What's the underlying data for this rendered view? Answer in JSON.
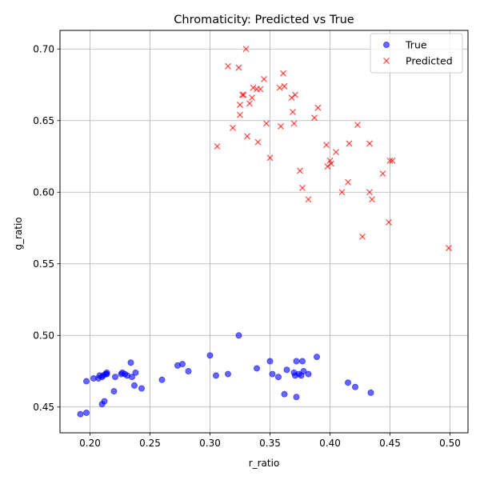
{
  "chart_data": {
    "type": "scatter",
    "title": "Chromaticity: Predicted vs True",
    "xlabel": "r_ratio",
    "ylabel": "g_ratio",
    "xlim": [
      0.175,
      0.515
    ],
    "ylim": [
      0.432,
      0.713
    ],
    "xticks": [
      0.2,
      0.25,
      0.3,
      0.35,
      0.4,
      0.45,
      0.5
    ],
    "xtick_labels": [
      "0.20",
      "0.25",
      "0.30",
      "0.35",
      "0.40",
      "0.45",
      "0.50"
    ],
    "yticks": [
      0.45,
      0.5,
      0.55,
      0.6,
      0.65,
      0.7
    ],
    "ytick_labels": [
      "0.45",
      "0.50",
      "0.55",
      "0.60",
      "0.65",
      "0.70"
    ],
    "grid": true,
    "legend": "top-right",
    "series": [
      {
        "name": "True",
        "marker": "circle",
        "color": "#0000ff",
        "points": [
          [
            0.192,
            0.445
          ],
          [
            0.197,
            0.446
          ],
          [
            0.197,
            0.468
          ],
          [
            0.203,
            0.47
          ],
          [
            0.207,
            0.47
          ],
          [
            0.208,
            0.472
          ],
          [
            0.21,
            0.452
          ],
          [
            0.21,
            0.471
          ],
          [
            0.211,
            0.472
          ],
          [
            0.212,
            0.454
          ],
          [
            0.213,
            0.473
          ],
          [
            0.214,
            0.474
          ],
          [
            0.214,
            0.473
          ],
          [
            0.22,
            0.461
          ],
          [
            0.221,
            0.471
          ],
          [
            0.226,
            0.473
          ],
          [
            0.227,
            0.474
          ],
          [
            0.229,
            0.473
          ],
          [
            0.231,
            0.472
          ],
          [
            0.234,
            0.481
          ],
          [
            0.235,
            0.471
          ],
          [
            0.237,
            0.465
          ],
          [
            0.238,
            0.474
          ],
          [
            0.243,
            0.463
          ],
          [
            0.26,
            0.469
          ],
          [
            0.273,
            0.479
          ],
          [
            0.277,
            0.48
          ],
          [
            0.282,
            0.475
          ],
          [
            0.3,
            0.486
          ],
          [
            0.305,
            0.472
          ],
          [
            0.315,
            0.473
          ],
          [
            0.324,
            0.5
          ],
          [
            0.339,
            0.477
          ],
          [
            0.35,
            0.482
          ],
          [
            0.352,
            0.473
          ],
          [
            0.357,
            0.471
          ],
          [
            0.362,
            0.459
          ],
          [
            0.364,
            0.476
          ],
          [
            0.37,
            0.474
          ],
          [
            0.371,
            0.472
          ],
          [
            0.372,
            0.457
          ],
          [
            0.372,
            0.482
          ],
          [
            0.374,
            0.473
          ],
          [
            0.376,
            0.472
          ],
          [
            0.377,
            0.482
          ],
          [
            0.378,
            0.475
          ],
          [
            0.382,
            0.473
          ],
          [
            0.389,
            0.485
          ],
          [
            0.415,
            0.467
          ],
          [
            0.421,
            0.464
          ],
          [
            0.434,
            0.46
          ]
        ]
      },
      {
        "name": "Predicted",
        "marker": "x",
        "color": "#ff0000",
        "points": [
          [
            0.306,
            0.632
          ],
          [
            0.315,
            0.688
          ],
          [
            0.319,
            0.645
          ],
          [
            0.324,
            0.687
          ],
          [
            0.325,
            0.661
          ],
          [
            0.325,
            0.654
          ],
          [
            0.327,
            0.668
          ],
          [
            0.328,
            0.668
          ],
          [
            0.33,
            0.7
          ],
          [
            0.331,
            0.639
          ],
          [
            0.333,
            0.662
          ],
          [
            0.335,
            0.666
          ],
          [
            0.336,
            0.673
          ],
          [
            0.339,
            0.672
          ],
          [
            0.34,
            0.635
          ],
          [
            0.342,
            0.672
          ],
          [
            0.345,
            0.679
          ],
          [
            0.347,
            0.648
          ],
          [
            0.35,
            0.624
          ],
          [
            0.358,
            0.673
          ],
          [
            0.359,
            0.646
          ],
          [
            0.361,
            0.683
          ],
          [
            0.362,
            0.674
          ],
          [
            0.368,
            0.666
          ],
          [
            0.369,
            0.656
          ],
          [
            0.37,
            0.648
          ],
          [
            0.371,
            0.668
          ],
          [
            0.375,
            0.615
          ],
          [
            0.377,
            0.603
          ],
          [
            0.382,
            0.595
          ],
          [
            0.387,
            0.652
          ],
          [
            0.39,
            0.659
          ],
          [
            0.397,
            0.633
          ],
          [
            0.398,
            0.618
          ],
          [
            0.4,
            0.622
          ],
          [
            0.401,
            0.62
          ],
          [
            0.405,
            0.628
          ],
          [
            0.41,
            0.6
          ],
          [
            0.415,
            0.607
          ],
          [
            0.416,
            0.634
          ],
          [
            0.423,
            0.647
          ],
          [
            0.427,
            0.569
          ],
          [
            0.433,
            0.6
          ],
          [
            0.433,
            0.634
          ],
          [
            0.435,
            0.595
          ],
          [
            0.444,
            0.613
          ],
          [
            0.449,
            0.579
          ],
          [
            0.45,
            0.622
          ],
          [
            0.452,
            0.622
          ],
          [
            0.499,
            0.561
          ]
        ]
      }
    ]
  }
}
